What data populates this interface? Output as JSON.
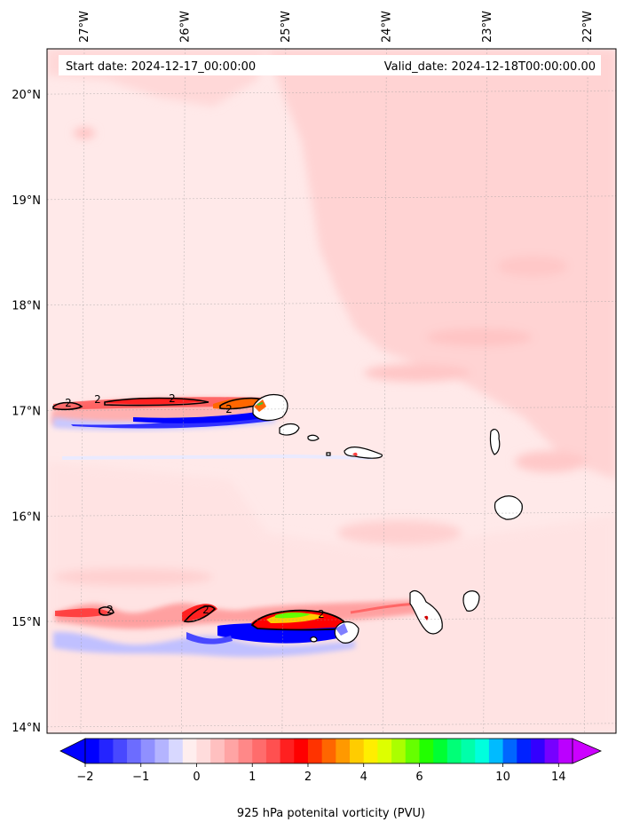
{
  "header": {
    "start_label": "Start date: 2024-12-17_00:00:00",
    "valid_label": "Valid_date: 2024-12-18T00:00:00.00"
  },
  "axes": {
    "lon_ticks": [
      {
        "value": -27,
        "label": "27°W"
      },
      {
        "value": -26,
        "label": "26°W"
      },
      {
        "value": -25,
        "label": "25°W"
      },
      {
        "value": -24,
        "label": "24°W"
      },
      {
        "value": -23,
        "label": "23°W"
      },
      {
        "value": -22,
        "label": "22°W"
      }
    ],
    "lat_ticks": [
      {
        "value": 20,
        "label": "20°N"
      },
      {
        "value": 19,
        "label": "19°N"
      },
      {
        "value": 18,
        "label": "18°N"
      },
      {
        "value": 17,
        "label": "17°N"
      },
      {
        "value": 16,
        "label": "16°N"
      },
      {
        "value": 15,
        "label": "15°N"
      },
      {
        "value": 14,
        "label": "14°N"
      }
    ],
    "lon_range": [
      -27.37,
      -21.72
    ],
    "lat_range": [
      13.94,
      20.43
    ],
    "gridlines": true
  },
  "contour_labels": [
    "2",
    "2",
    "2",
    "2",
    "2",
    "2",
    "2"
  ],
  "colorbar": {
    "label": "925 hPa potenital vorticity (PVU)",
    "levels": [
      -2,
      -1.75,
      -1.5,
      -1.25,
      -1,
      -0.75,
      -0.5,
      -0.25,
      0,
      0.25,
      0.5,
      0.75,
      1,
      1.25,
      1.5,
      1.75,
      2,
      2.5,
      3,
      3.5,
      4,
      4.5,
      5,
      5.5,
      6,
      6.5,
      7,
      7.5,
      8,
      9,
      10,
      11,
      12,
      13,
      14,
      15
    ],
    "colors": [
      "#0000ff",
      "#2424ff",
      "#4848ff",
      "#6c6cff",
      "#9090ff",
      "#b4b4ff",
      "#d8d8ff",
      "#ffeeee",
      "#ffdcdc",
      "#ffc0c0",
      "#ffa4a4",
      "#ff8888",
      "#ff6c6c",
      "#ff5050",
      "#ff2020",
      "#ff0000",
      "#ff3300",
      "#ff6600",
      "#ff9900",
      "#ffcc00",
      "#ffee00",
      "#ddff00",
      "#aaff00",
      "#66ff00",
      "#22ff00",
      "#00ff33",
      "#00ff77",
      "#00ffaa",
      "#00ffdd",
      "#00bbff",
      "#0066ff",
      "#0022ff",
      "#3300ff",
      "#7700ff",
      "#bb00ff"
    ],
    "tick_labels": [
      {
        "value": -2,
        "label": "−2"
      },
      {
        "value": -1,
        "label": "−1"
      },
      {
        "value": 0,
        "label": "0"
      },
      {
        "value": 1,
        "label": "1"
      },
      {
        "value": 2,
        "label": "2"
      },
      {
        "value": 4,
        "label": "4"
      },
      {
        "value": 6,
        "label": "6"
      },
      {
        "value": 10,
        "label": "10"
      },
      {
        "value": 14,
        "label": "14"
      }
    ],
    "extend": "both"
  }
}
